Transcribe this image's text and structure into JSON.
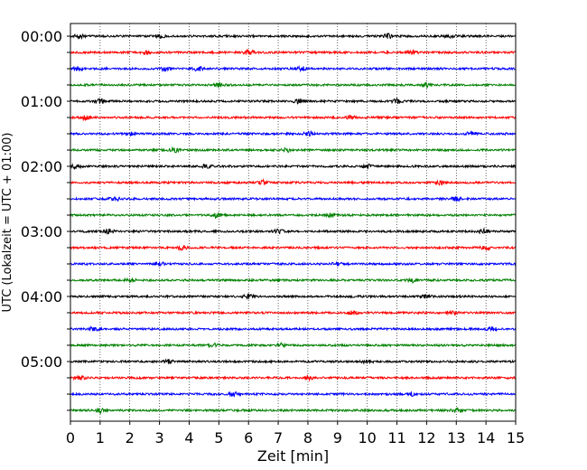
{
  "chart_data": {
    "type": "line",
    "title": "",
    "xlabel": "Zeit  [min]",
    "ylabel": "UTC (Lokalzeit = UTC + 01:00)",
    "xlim": [
      0,
      15
    ],
    "x_ticks": [
      "0",
      "1",
      "2",
      "3",
      "4",
      "5",
      "6",
      "7",
      "8",
      "9",
      "10",
      "11",
      "12",
      "13",
      "14",
      "15"
    ],
    "vertical_grid": "dotted",
    "y_tick_labels": [
      "00:00",
      "01:00",
      "02:00",
      "03:00",
      "04:00",
      "05:00"
    ],
    "trace_interval_minutes": 15,
    "trace_count": 24,
    "trace_colors": [
      "#000000",
      "#ff0000",
      "#0000ff",
      "#008000"
    ],
    "series": [
      {
        "start": "00:00",
        "color": "#000000",
        "bursts": [
          0.3,
          3.0,
          10.7,
          12.8
        ]
      },
      {
        "start": "00:15",
        "color": "#ff0000",
        "bursts": [
          2.5,
          6.0,
          11.5
        ]
      },
      {
        "start": "00:30",
        "color": "#0000ff",
        "bursts": [
          0.3,
          3.2,
          4.3,
          7.8
        ]
      },
      {
        "start": "00:45",
        "color": "#008000",
        "bursts": [
          5.0,
          12.0
        ]
      },
      {
        "start": "01:00",
        "color": "#000000",
        "bursts": [
          1.0,
          7.7,
          11.0
        ]
      },
      {
        "start": "01:15",
        "color": "#ff0000",
        "bursts": [
          0.5,
          9.5
        ]
      },
      {
        "start": "01:30",
        "color": "#0000ff",
        "bursts": [
          2.0,
          8.0,
          13.5
        ]
      },
      {
        "start": "01:45",
        "color": "#008000",
        "bursts": [
          3.5,
          7.3
        ]
      },
      {
        "start": "02:00",
        "color": "#000000",
        "bursts": [
          0.2,
          4.6,
          10.0
        ]
      },
      {
        "start": "02:15",
        "color": "#ff0000",
        "bursts": [
          6.5,
          12.5
        ]
      },
      {
        "start": "02:30",
        "color": "#0000ff",
        "bursts": [
          1.5,
          13.0
        ]
      },
      {
        "start": "02:45",
        "color": "#008000",
        "bursts": [
          4.9,
          8.8
        ]
      },
      {
        "start": "03:00",
        "color": "#000000",
        "bursts": [
          1.3,
          7.0,
          13.9
        ]
      },
      {
        "start": "03:15",
        "color": "#ff0000",
        "bursts": [
          3.8,
          14.0
        ]
      },
      {
        "start": "03:30",
        "color": "#0000ff",
        "bursts": [
          3.0,
          9.0
        ]
      },
      {
        "start": "03:45",
        "color": "#008000",
        "bursts": [
          2.0,
          11.5
        ]
      },
      {
        "start": "04:00",
        "color": "#000000",
        "bursts": [
          6.0,
          12.0
        ]
      },
      {
        "start": "04:15",
        "color": "#ff0000",
        "bursts": [
          9.5,
          12.8
        ]
      },
      {
        "start": "04:30",
        "color": "#0000ff",
        "bursts": [
          0.8,
          14.2
        ]
      },
      {
        "start": "04:45",
        "color": "#008000",
        "bursts": [
          4.8,
          7.1
        ]
      },
      {
        "start": "05:00",
        "color": "#000000",
        "bursts": [
          3.3,
          10.0
        ]
      },
      {
        "start": "05:15",
        "color": "#ff0000",
        "bursts": [
          0.3,
          8.0
        ]
      },
      {
        "start": "05:30",
        "color": "#0000ff",
        "bursts": [
          5.5,
          11.5
        ]
      },
      {
        "start": "05:45",
        "color": "#008000",
        "bursts": [
          1.0,
          13.0
        ]
      }
    ]
  }
}
